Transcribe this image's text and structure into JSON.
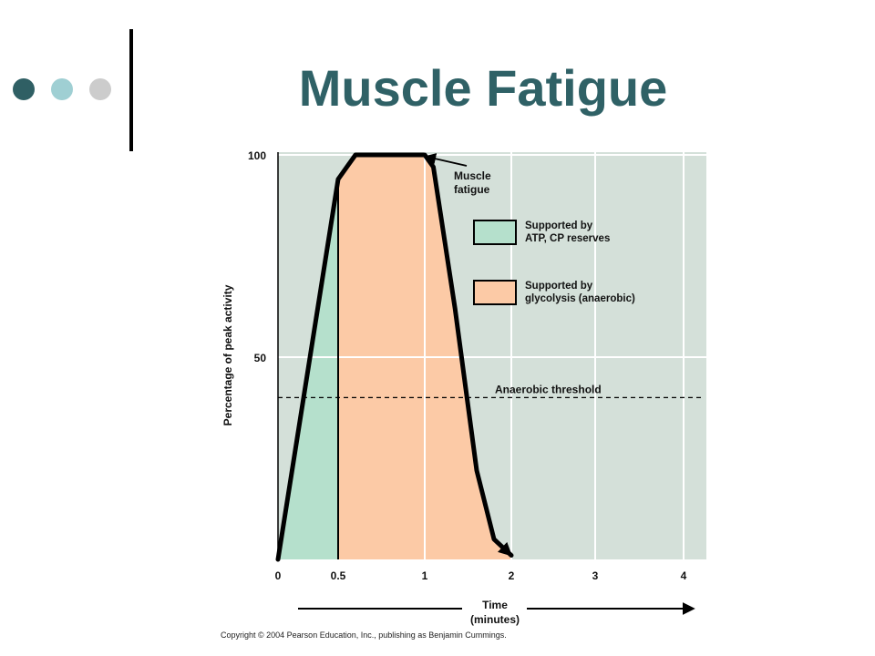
{
  "slide": {
    "title": "Muscle Fatigue",
    "copyright": "Copyright © 2004 Pearson Education, Inc., publishing as Benjamin Cummings."
  },
  "colors": {
    "title": "#2f6166",
    "plot_background": "#d4e0d9",
    "gridline": "#ffffff",
    "atp_fill": "#b5e0cc",
    "glycolysis_fill": "#fccaa6",
    "curve": "#000000"
  },
  "chart_data": {
    "type": "area",
    "title": "",
    "xlabel": "Time",
    "xlabel_unit": "(minutes)",
    "ylabel": "Percentage of peak activity",
    "xlim": [
      0,
      4.25
    ],
    "ylim": [
      0,
      102
    ],
    "grid": true,
    "x_ticks": [
      0,
      0.5,
      1,
      2,
      3,
      4
    ],
    "x_tick_labels": [
      "0",
      "0.5",
      "1",
      "2",
      "3",
      "4"
    ],
    "y_ticks": [
      50,
      100
    ],
    "y_tick_labels": [
      "50",
      "100"
    ],
    "curve": {
      "x": [
        0,
        0.5,
        0.6,
        1.0,
        1.1,
        1.35,
        1.6,
        1.8,
        2.0
      ],
      "y": [
        0,
        94,
        100,
        100,
        97,
        62,
        22,
        5,
        1
      ]
    },
    "regions": [
      {
        "name": "Supported by ATP, CP reserves",
        "x_range": [
          0,
          0.5
        ],
        "color": "#b5e0cc"
      },
      {
        "name": "Supported by glycolysis (anaerobic)",
        "x_range": [
          0.5,
          2.0
        ],
        "color": "#fccaa6"
      }
    ],
    "legend": {
      "placement": "top-right",
      "entries": [
        {
          "line1": "Supported by",
          "line2": "ATP, CP reserves",
          "color": "#b5e0cc"
        },
        {
          "line1": "Supported by",
          "line2": "glycolysis (anaerobic)",
          "color": "#fccaa6"
        }
      ]
    },
    "threshold": {
      "label": "Anaerobic threshold",
      "y": 40
    },
    "annotation": {
      "line1": "Muscle",
      "line2": "fatigue",
      "x": 1.0,
      "y": 100
    }
  }
}
